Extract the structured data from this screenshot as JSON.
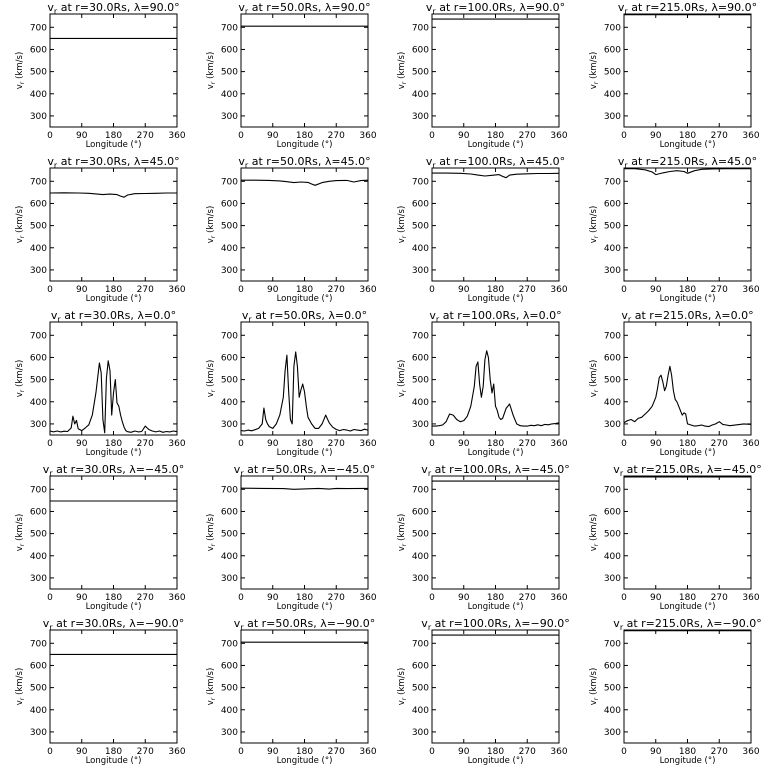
{
  "figure": {
    "x_ticks": [
      "0",
      "90",
      "180",
      "270",
      "360"
    ],
    "y_ticks": [
      "300",
      "400",
      "500",
      "600",
      "700"
    ],
    "x_label": "Longitude (°)",
    "y_label_main": "v",
    "y_label_sub": "r",
    "y_label_rest": " (km/s)"
  },
  "chart_data": [
    {
      "type": "line",
      "title": "v_r at r=30.0Rs, λ=90.0°",
      "title_pre": "v",
      "title_sub": "r",
      "title_post": " at r=30.0Rs, λ=90.0°",
      "xlabel": "Longitude (°)",
      "ylabel": "v_r (km/s)",
      "xlim": [
        0,
        360
      ],
      "ylim": [
        250,
        760
      ],
      "x": [
        0,
        360
      ],
      "y": [
        650,
        650
      ]
    },
    {
      "type": "line",
      "title": "v_r at r=50.0Rs, λ=90.0°",
      "title_pre": "v",
      "title_sub": "r",
      "title_post": " at r=50.0Rs, λ=90.0°",
      "xlabel": "Longitude (°)",
      "ylabel": "v_r (km/s)",
      "xlim": [
        0,
        360
      ],
      "ylim": [
        250,
        760
      ],
      "x": [
        0,
        360
      ],
      "y": [
        705,
        705
      ]
    },
    {
      "type": "line",
      "title": "v_r at r=100.0Rs, λ=90.0°",
      "title_pre": "v",
      "title_sub": "r",
      "title_post": " at r=100.0Rs, λ=90.0°",
      "xlabel": "Longitude (°)",
      "ylabel": "v_r (km/s)",
      "xlim": [
        0,
        360
      ],
      "ylim": [
        250,
        760
      ],
      "x": [
        0,
        360
      ],
      "y": [
        737,
        737
      ]
    },
    {
      "type": "line",
      "title": "v_r at r=215.0Rs, λ=90.0°",
      "title_pre": "v",
      "title_sub": "r",
      "title_post": " at r=215.0Rs, λ=90.0°",
      "xlabel": "Longitude (°)",
      "ylabel": "v_r (km/s)",
      "xlim": [
        0,
        360
      ],
      "ylim": [
        250,
        760
      ],
      "x": [
        0,
        360
      ],
      "y": [
        757,
        757
      ]
    },
    {
      "type": "line",
      "title": "v_r at r=30.0Rs, λ=45.0°",
      "title_pre": "v",
      "title_sub": "r",
      "title_post": " at r=30.0Rs, λ=45.0°",
      "xlabel": "Longitude (°)",
      "ylabel": "v_r (km/s)",
      "xlim": [
        0,
        360
      ],
      "ylim": [
        250,
        760
      ],
      "x": [
        0,
        40,
        80,
        110,
        130,
        150,
        170,
        190,
        200,
        210,
        220,
        240,
        270,
        300,
        330,
        360
      ],
      "y": [
        647,
        648,
        647,
        646,
        643,
        640,
        642,
        640,
        633,
        628,
        638,
        644,
        645,
        646,
        647,
        647
      ]
    },
    {
      "type": "line",
      "title": "v_r at r=50.0Rs, λ=45.0°",
      "title_pre": "v",
      "title_sub": "r",
      "title_post": " at r=50.0Rs, λ=45.0°",
      "xlabel": "Longitude (°)",
      "ylabel": "v_r (km/s)",
      "xlim": [
        0,
        360
      ],
      "ylim": [
        250,
        760
      ],
      "x": [
        0,
        40,
        80,
        110,
        130,
        150,
        170,
        190,
        200,
        210,
        230,
        250,
        270,
        300,
        320,
        340,
        360
      ],
      "y": [
        705,
        705,
        704,
        702,
        698,
        694,
        697,
        695,
        688,
        682,
        694,
        700,
        703,
        704,
        697,
        703,
        705
      ]
    },
    {
      "type": "line",
      "title": "v_r at r=100.0Rs, λ=45.0°",
      "title_pre": "v",
      "title_sub": "r",
      "title_post": " at r=100.0Rs, λ=45.0°",
      "xlabel": "Longitude (°)",
      "ylabel": "v_r (km/s)",
      "xlim": [
        0,
        360
      ],
      "ylim": [
        250,
        760
      ],
      "x": [
        0,
        40,
        80,
        110,
        130,
        150,
        170,
        190,
        200,
        210,
        220,
        240,
        270,
        300,
        330,
        360
      ],
      "y": [
        737,
        737,
        736,
        733,
        728,
        724,
        727,
        730,
        722,
        716,
        728,
        732,
        734,
        735,
        735,
        736
      ]
    },
    {
      "type": "line",
      "title": "v_r at r=215.0Rs, λ=45.0°",
      "title_pre": "v",
      "title_sub": "r",
      "title_post": " at r=215.0Rs, λ=45.0°",
      "xlabel": "Longitude (°)",
      "ylabel": "v_r (km/s)",
      "xlim": [
        0,
        360
      ],
      "ylim": [
        250,
        760
      ],
      "x": [
        0,
        30,
        60,
        80,
        90,
        110,
        130,
        150,
        170,
        180,
        200,
        220,
        250,
        290,
        330,
        360
      ],
      "y": [
        757,
        757,
        752,
        742,
        730,
        738,
        744,
        748,
        744,
        736,
        748,
        754,
        756,
        757,
        757,
        757
      ]
    },
    {
      "type": "line",
      "title": "v_r at r=30.0Rs, λ=0.0°",
      "title_pre": "v",
      "title_sub": "r",
      "title_post": " at r=30.0Rs, λ=0.0°",
      "xlabel": "Longitude (°)",
      "ylabel": "v_r (km/s)",
      "xlim": [
        0,
        360
      ],
      "ylim": [
        250,
        760
      ],
      "x": [
        0,
        10,
        20,
        30,
        40,
        50,
        60,
        65,
        70,
        75,
        80,
        90,
        100,
        110,
        120,
        130,
        140,
        145,
        150,
        155,
        160,
        165,
        170,
        175,
        180,
        185,
        190,
        195,
        200,
        205,
        210,
        215,
        220,
        230,
        240,
        250,
        260,
        270,
        280,
        290,
        300,
        310,
        320,
        330,
        340,
        350,
        360
      ],
      "y": [
        268,
        264,
        268,
        264,
        267,
        266,
        282,
        335,
        300,
        316,
        278,
        270,
        282,
        296,
        340,
        440,
        575,
        530,
        320,
        260,
        505,
        585,
        540,
        340,
        440,
        500,
        395,
        380,
        340,
        310,
        285,
        270,
        265,
        262,
        268,
        264,
        266,
        290,
        275,
        268,
        264,
        268,
        262,
        266,
        264,
        268,
        265
      ]
    },
    {
      "type": "line",
      "title": "v_r at r=50.0Rs, λ=0.0°",
      "title_pre": "v",
      "title_sub": "r",
      "title_post": " at r=50.0Rs, λ=0.0°",
      "xlabel": "Longitude (°)",
      "ylabel": "v_r (km/s)",
      "xlim": [
        0,
        360
      ],
      "ylim": [
        250,
        760
      ],
      "x": [
        0,
        10,
        20,
        30,
        40,
        50,
        60,
        65,
        70,
        75,
        80,
        90,
        100,
        110,
        120,
        125,
        130,
        135,
        140,
        145,
        150,
        155,
        160,
        165,
        170,
        175,
        180,
        185,
        190,
        200,
        210,
        220,
        230,
        240,
        250,
        260,
        270,
        280,
        290,
        300,
        310,
        320,
        330,
        340,
        350,
        360
      ],
      "y": [
        270,
        268,
        272,
        269,
        274,
        280,
        300,
        372,
        320,
        300,
        288,
        280,
        300,
        340,
        420,
        540,
        610,
        450,
        320,
        300,
        560,
        625,
        560,
        420,
        455,
        480,
        445,
        380,
        330,
        300,
        280,
        280,
        300,
        340,
        305,
        285,
        275,
        270,
        275,
        272,
        268,
        275,
        272,
        270,
        276,
        272
      ]
    },
    {
      "type": "line",
      "title": "v_r at r=100.0Rs, λ=0.0°",
      "title_pre": "v",
      "title_sub": "r",
      "title_post": " at r=100.0Rs, λ=0.0°",
      "xlabel": "Longitude (°)",
      "ylabel": "v_r (km/s)",
      "xlim": [
        0,
        360
      ],
      "ylim": [
        250,
        760
      ],
      "x": [
        0,
        10,
        20,
        30,
        40,
        50,
        60,
        70,
        80,
        90,
        100,
        110,
        120,
        125,
        130,
        135,
        140,
        145,
        150,
        155,
        160,
        165,
        170,
        175,
        180,
        185,
        190,
        195,
        200,
        210,
        220,
        230,
        240,
        250,
        260,
        270,
        280,
        290,
        300,
        310,
        320,
        330,
        340,
        350,
        360
      ],
      "y": [
        290,
        290,
        292,
        295,
        310,
        345,
        340,
        320,
        310,
        315,
        335,
        380,
        470,
        560,
        580,
        480,
        420,
        470,
        590,
        630,
        600,
        500,
        440,
        480,
        380,
        360,
        330,
        320,
        325,
        370,
        390,
        340,
        300,
        292,
        290,
        290,
        294,
        292,
        296,
        292,
        298,
        296,
        300,
        302,
        305
      ]
    },
    {
      "type": "line",
      "title": "v_r at r=215.0Rs, λ=0.0°",
      "title_pre": "v",
      "title_sub": "r",
      "title_post": " at r=215.0Rs, λ=0.0°",
      "xlabel": "Longitude (°)",
      "ylabel": "v_r (km/s)",
      "xlim": [
        0,
        360
      ],
      "ylim": [
        250,
        760
      ],
      "x": [
        0,
        10,
        20,
        30,
        40,
        50,
        60,
        70,
        80,
        90,
        95,
        100,
        105,
        110,
        115,
        120,
        125,
        130,
        135,
        140,
        145,
        150,
        155,
        160,
        165,
        170,
        175,
        180,
        190,
        200,
        210,
        220,
        230,
        240,
        250,
        260,
        270,
        280,
        290,
        300,
        320,
        340,
        360
      ],
      "y": [
        305,
        315,
        320,
        310,
        325,
        330,
        345,
        360,
        380,
        420,
        460,
        510,
        520,
        490,
        450,
        470,
        520,
        560,
        520,
        450,
        410,
        400,
        380,
        360,
        340,
        350,
        345,
        300,
        295,
        290,
        292,
        295,
        290,
        288,
        295,
        300,
        310,
        298,
        295,
        292,
        296,
        300,
        298
      ]
    },
    {
      "type": "line",
      "title": "v_r at r=30.0Rs, λ=-45.0°",
      "title_pre": "v",
      "title_sub": "r",
      "title_post": " at r=30.0Rs, λ=−45.0°",
      "xlabel": "Longitude (°)",
      "ylabel": "v_r (km/s)",
      "xlim": [
        0,
        360
      ],
      "ylim": [
        250,
        760
      ],
      "x": [
        0,
        360
      ],
      "y": [
        647,
        647
      ]
    },
    {
      "type": "line",
      "title": "v_r at r=50.0Rs, λ=-45.0°",
      "title_pre": "v",
      "title_sub": "r",
      "title_post": " at r=50.0Rs, λ=−45.0°",
      "xlabel": "Longitude (°)",
      "ylabel": "v_r (km/s)",
      "xlim": [
        0,
        360
      ],
      "ylim": [
        250,
        760
      ],
      "x": [
        0,
        60,
        120,
        150,
        180,
        220,
        250,
        270,
        300,
        360
      ],
      "y": [
        705,
        704,
        703,
        700,
        702,
        704,
        701,
        704,
        703,
        704
      ]
    },
    {
      "type": "line",
      "title": "v_r at r=100.0Rs, λ=-45.0°",
      "title_pre": "v",
      "title_sub": "r",
      "title_post": " at r=100.0Rs, λ=−45.0°",
      "xlabel": "Longitude (°)",
      "ylabel": "v_r (km/s)",
      "xlim": [
        0,
        360
      ],
      "ylim": [
        250,
        760
      ],
      "x": [
        0,
        360
      ],
      "y": [
        737,
        737
      ]
    },
    {
      "type": "line",
      "title": "v_r at r=215.0Rs, λ=-45.0°",
      "title_pre": "v",
      "title_sub": "r",
      "title_post": " at r=215.0Rs, λ=−45.0°",
      "xlabel": "Longitude (°)",
      "ylabel": "v_r (km/s)",
      "xlim": [
        0,
        360
      ],
      "ylim": [
        250,
        760
      ],
      "x": [
        0,
        360
      ],
      "y": [
        756,
        756
      ]
    },
    {
      "type": "line",
      "title": "v_r at r=30.0Rs, λ=-90.0°",
      "title_pre": "v",
      "title_sub": "r",
      "title_post": " at r=30.0Rs, λ=−90.0°",
      "xlabel": "Longitude (°)",
      "ylabel": "v_r (km/s)",
      "xlim": [
        0,
        360
      ],
      "ylim": [
        250,
        760
      ],
      "x": [
        0,
        360
      ],
      "y": [
        650,
        650
      ]
    },
    {
      "type": "line",
      "title": "v_r at r=50.0Rs, λ=-90.0°",
      "title_pre": "v",
      "title_sub": "r",
      "title_post": " at r=50.0Rs, λ=−90.0°",
      "xlabel": "Longitude (°)",
      "ylabel": "v_r (km/s)",
      "xlim": [
        0,
        360
      ],
      "ylim": [
        250,
        760
      ],
      "x": [
        0,
        360
      ],
      "y": [
        705,
        705
      ]
    },
    {
      "type": "line",
      "title": "v_r at r=100.0Rs, λ=-90.0°",
      "title_pre": "v",
      "title_sub": "r",
      "title_post": " at r=100.0Rs, λ=−90.0°",
      "xlabel": "Longitude (°)",
      "ylabel": "v_r (km/s)",
      "xlim": [
        0,
        360
      ],
      "ylim": [
        250,
        760
      ],
      "x": [
        0,
        360
      ],
      "y": [
        737,
        737
      ]
    },
    {
      "type": "line",
      "title": "v_r at r=215.0Rs, λ=-90.0°",
      "title_pre": "v",
      "title_sub": "r",
      "title_post": " at r=215.0Rs, λ=−90.0°",
      "xlabel": "Longitude (°)",
      "ylabel": "v_r (km/s)",
      "xlim": [
        0,
        360
      ],
      "ylim": [
        250,
        760
      ],
      "x": [
        0,
        360
      ],
      "y": [
        757,
        757
      ]
    }
  ]
}
